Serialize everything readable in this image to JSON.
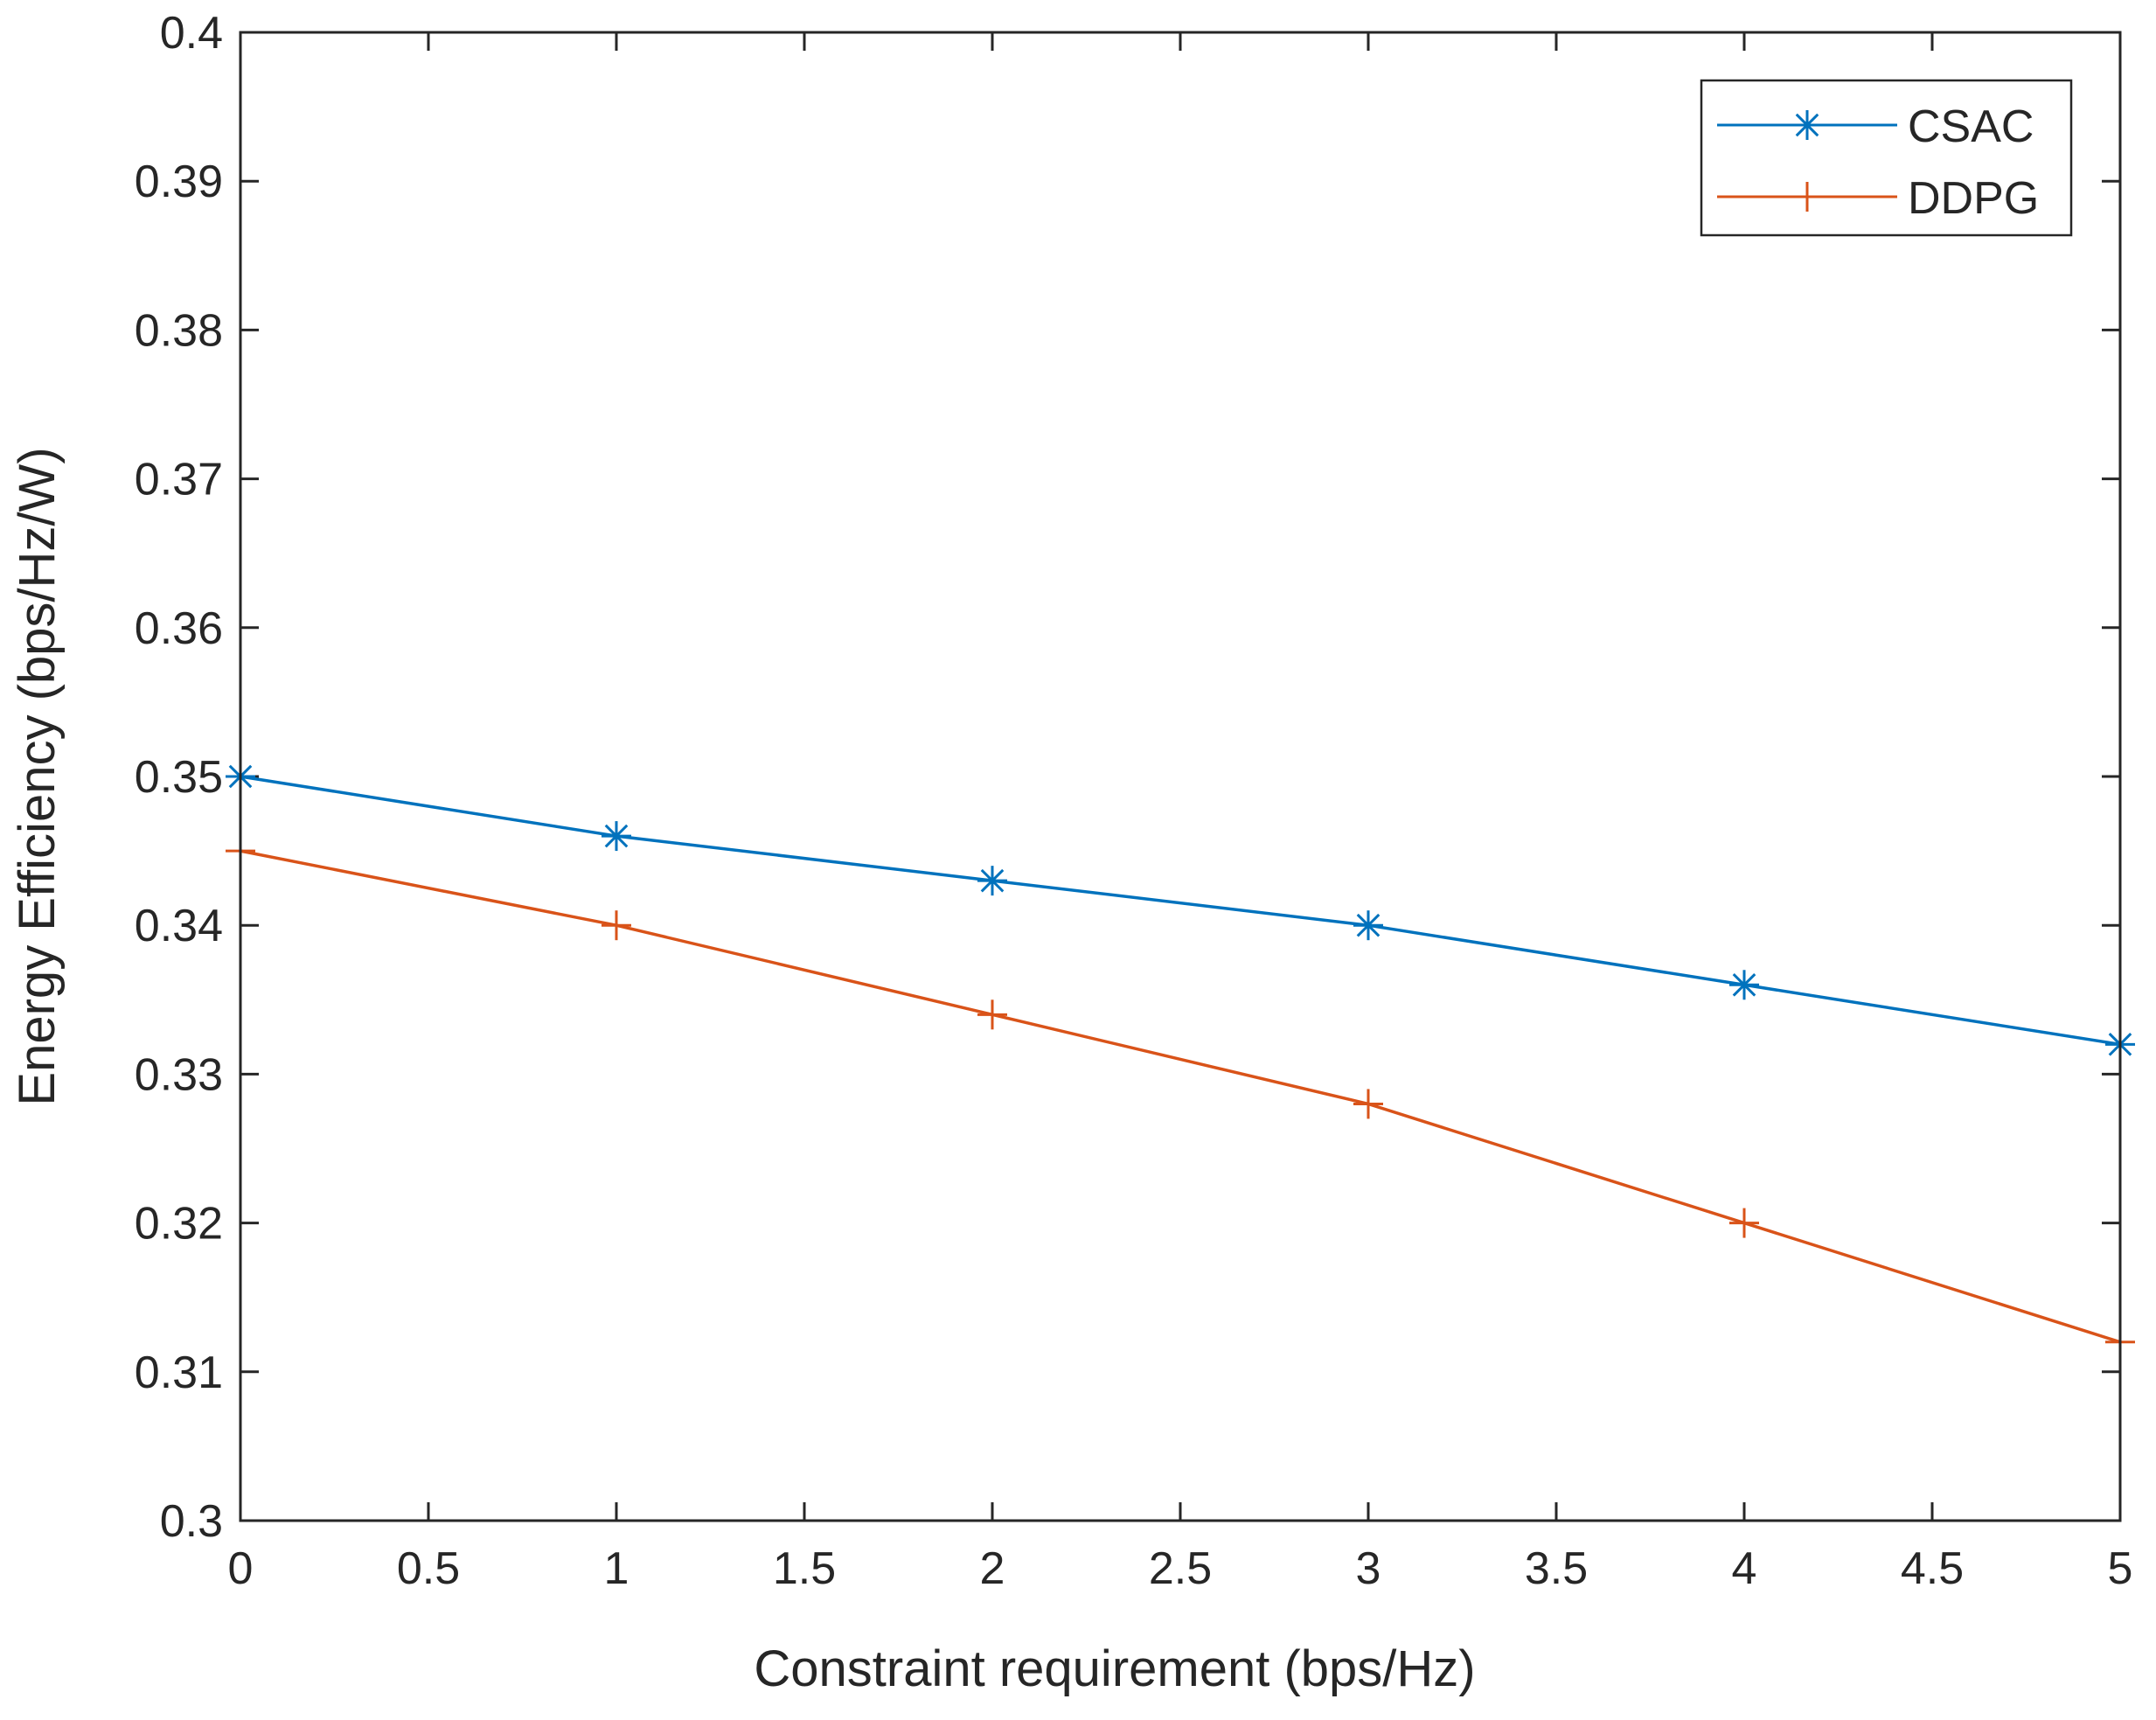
{
  "chart_data": {
    "type": "line",
    "title": "",
    "xlabel": "Constraint requirement (bps/Hz)",
    "ylabel": "Energy Efficiency (bps/Hz/W)",
    "xlim": [
      0,
      5
    ],
    "ylim": [
      0.3,
      0.4
    ],
    "xticks": [
      0,
      0.5,
      1,
      1.5,
      2,
      2.5,
      3,
      3.5,
      4,
      4.5,
      5
    ],
    "xtick_labels": [
      "0",
      "0.5",
      "1",
      "1.5",
      "2",
      "2.5",
      "3",
      "3.5",
      "4",
      "4.5",
      "5"
    ],
    "yticks": [
      0.3,
      0.31,
      0.32,
      0.33,
      0.34,
      0.35,
      0.36,
      0.37,
      0.38,
      0.39,
      0.4
    ],
    "ytick_labels": [
      "0.3",
      "0.31",
      "0.32",
      "0.33",
      "0.34",
      "0.35",
      "0.36",
      "0.37",
      "0.38",
      "0.39",
      "0.4"
    ],
    "grid": false,
    "legend_position": "top-right",
    "x": [
      0,
      1,
      2,
      3,
      4,
      5
    ],
    "series": [
      {
        "name": "CSAC",
        "color": "#0072BD",
        "marker": "asterisk",
        "values": [
          0.35,
          0.346,
          0.343,
          0.34,
          0.336,
          0.332
        ]
      },
      {
        "name": "DDPG",
        "color": "#D95319",
        "marker": "plus",
        "values": [
          0.345,
          0.34,
          0.334,
          0.328,
          0.32,
          0.312
        ]
      }
    ]
  }
}
